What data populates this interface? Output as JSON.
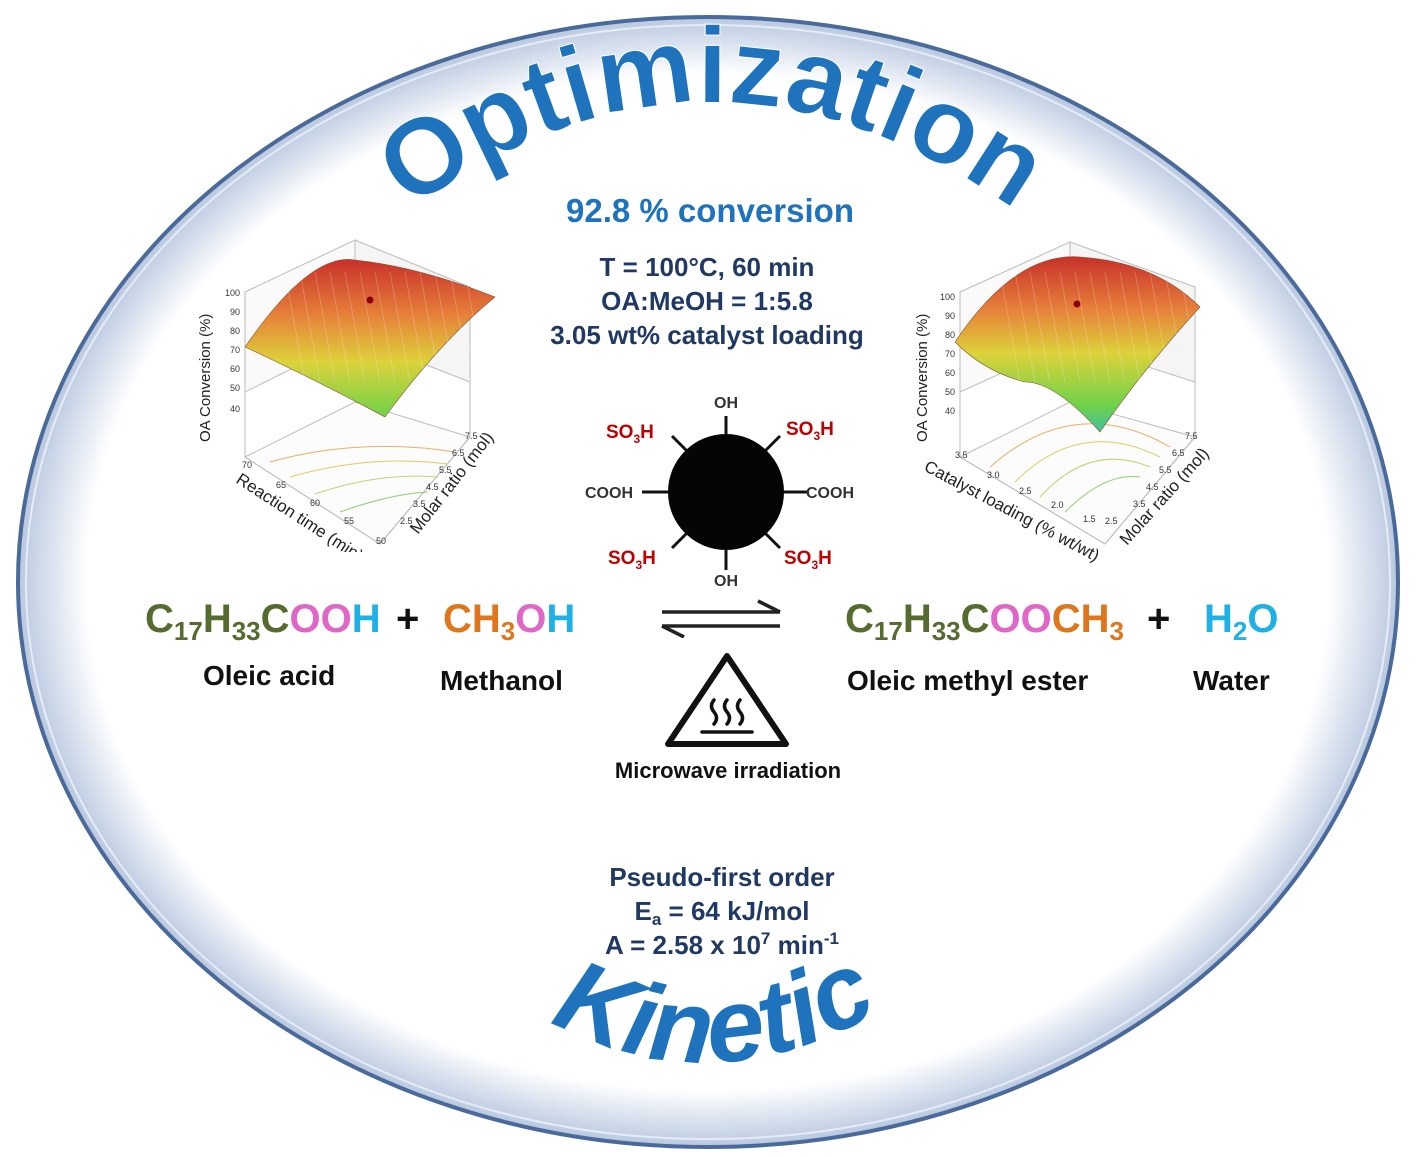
{
  "title_top": "Optimization",
  "title_bottom": "Kinetic",
  "conversion": "92.8 % conversion",
  "conditions": [
    "T = 100°C, 60 min",
    "OA:MeOH = 1:5.8",
    "3.05 wt% catalyst loading"
  ],
  "reaction": {
    "reactant1": {
      "c": "C",
      "s17": "17",
      "h": "H",
      "s33": "33",
      "c2": "C",
      "oo": "OO",
      "h2": "H",
      "name": "Oleic acid"
    },
    "plus": "+",
    "reactant2": {
      "ch": "CH",
      "s3": "3",
      "o": "O",
      "h": "H",
      "name": "Methanol"
    },
    "product1": {
      "c": "C",
      "s17": "17",
      "h": "H",
      "s33": "33",
      "c2": "C",
      "oo": "OO",
      "ch": "CH",
      "s3": "3",
      "name": "Oleic methyl ester"
    },
    "product2": {
      "h": "H",
      "s2": "2",
      "o": "O",
      "name": "Water"
    },
    "condition": "Microwave irradiation"
  },
  "catalyst": {
    "groups": {
      "oh": "OH",
      "so3h_so": "SO",
      "so3h_3": "3",
      "so3h_h": "H",
      "cooh": "COOH"
    }
  },
  "kinetics": {
    "order": "Pseudo-first order",
    "ea_e": "E",
    "ea_sub": "a",
    "ea_rest": " = 64 kJ/mol",
    "a_main": "A = 2.58 x 10",
    "a_exp": "7",
    "a_unit": " min",
    "a_unit_exp": "-1"
  },
  "plot_left": {
    "zlabel": "OA Conversion (%)",
    "zticks": [
      "100",
      "90",
      "80",
      "70",
      "60",
      "50",
      "40"
    ],
    "xlabel": "Reaction time (min)",
    "xticks": [
      "70",
      "65",
      "60",
      "55",
      "50"
    ],
    "ylabel": "Molar ratio (mol)",
    "yticks": [
      "7.5",
      "6.5",
      "5.5",
      "4.5",
      "3.5",
      "2.5"
    ]
  },
  "plot_right": {
    "zlabel": "OA Conversion (%)",
    "zticks": [
      "100",
      "90",
      "80",
      "70",
      "60",
      "50",
      "40"
    ],
    "xlabel": "Catalyst loading (% wt/wt)",
    "xticks": [
      "3.5",
      "3.0",
      "2.5",
      "2.0",
      "1.5"
    ],
    "ylabel": "Molar ratio (mol)",
    "yticks": [
      "7.5",
      "6.5",
      "5.5",
      "4.5",
      "3.5",
      "2.5"
    ]
  },
  "colors": {
    "title_blue": "#1f73bd",
    "navy": "#1f3864",
    "olive": "#556b2f",
    "pink": "#e066c8",
    "cyan": "#1fb0e6",
    "orange": "#e0761c",
    "red": "#c00000"
  }
}
